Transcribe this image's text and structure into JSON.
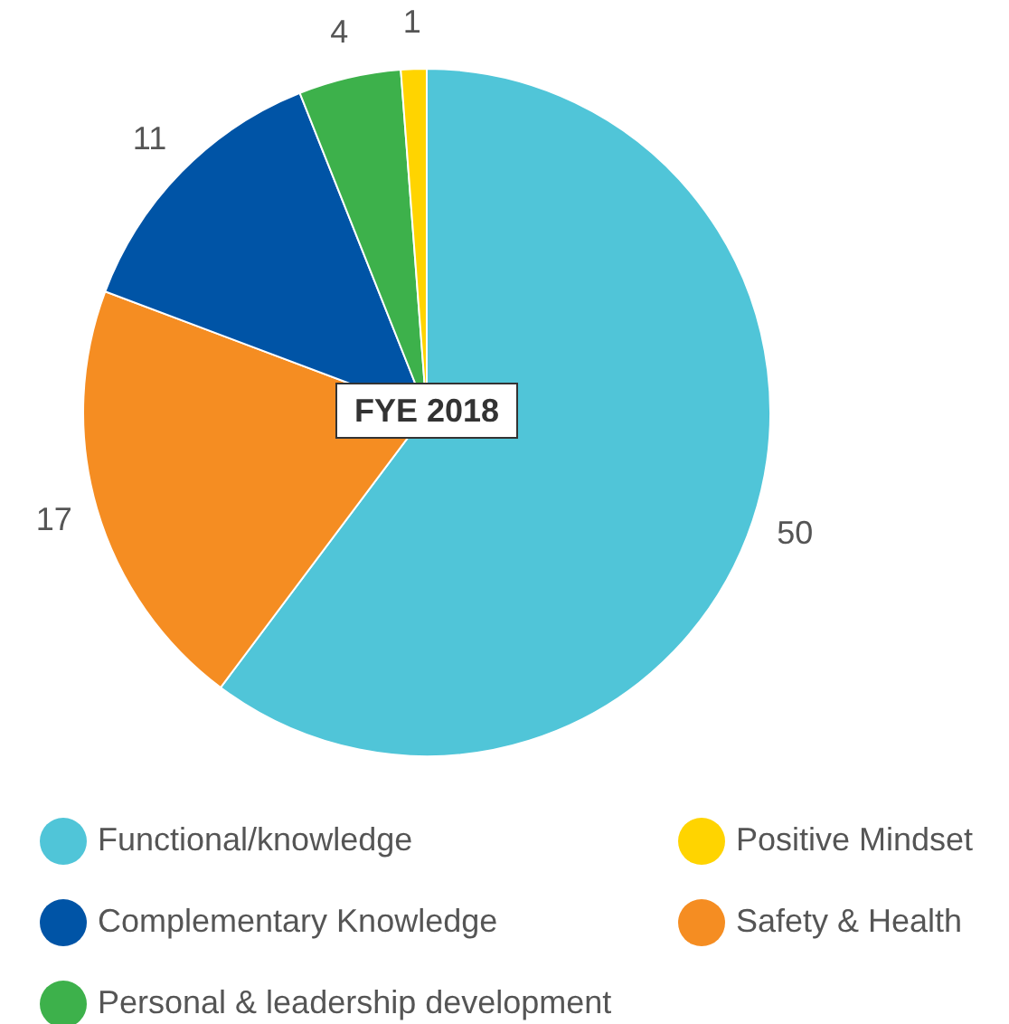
{
  "chart_data": {
    "type": "pie",
    "title": "FYE 2018",
    "categories": [
      "Functional/knowledge",
      "Safety & Health",
      "Complementary Knowledge",
      "Personal & leadership development",
      "Positive Mindset"
    ],
    "values": [
      50,
      17,
      11,
      4,
      1
    ],
    "colors": [
      "#50c5d8",
      "#f58d22",
      "#0054a6",
      "#3db14b",
      "#ffd400"
    ],
    "data_labels": true,
    "legend": "bottom"
  }
}
